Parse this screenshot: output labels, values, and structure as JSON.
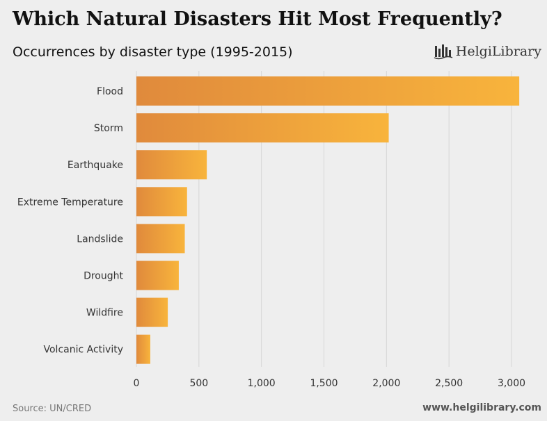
{
  "colors": {
    "bar_start": "#e08a3c",
    "bar_end": "#f8b43c",
    "grid": "#d6d6d6",
    "background": "#eeeeee"
  },
  "logo": {
    "text": "HelgiLibrary",
    "icon": "bar-chart-mark-icon"
  },
  "footer": {
    "source": "Source: UN/CRED",
    "url": "www.helgilibrary.com"
  },
  "chart_data": {
    "type": "bar",
    "orientation": "horizontal",
    "title": "Which Natural Disasters Hit Most Frequently?",
    "subtitle": "Occurrences by disaster type (1995-2015)",
    "categories": [
      "Flood",
      "Storm",
      "Earthquake",
      "Extreme Temperature",
      "Landslide",
      "Drought",
      "Wildfire",
      "Volcanic Activity"
    ],
    "values": [
      3062,
      2018,
      563,
      405,
      387,
      339,
      251,
      111
    ],
    "xlim": [
      0,
      3000
    ],
    "xticks": [
      0,
      500,
      1000,
      1500,
      2000,
      2500,
      3000
    ],
    "xtick_labels": [
      "0",
      "500",
      "1,000",
      "1,500",
      "2,000",
      "2,500",
      "3,000"
    ],
    "grid": "vertical",
    "legend": "none"
  }
}
